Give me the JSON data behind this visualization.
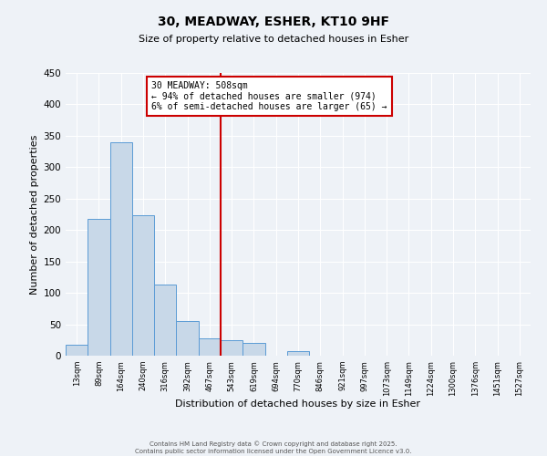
{
  "title": "30, MEADWAY, ESHER, KT10 9HF",
  "subtitle": "Size of property relative to detached houses in Esher",
  "xlabel": "Distribution of detached houses by size in Esher",
  "ylabel": "Number of detached properties",
  "bin_labels": [
    "13sqm",
    "89sqm",
    "164sqm",
    "240sqm",
    "316sqm",
    "392sqm",
    "467sqm",
    "543sqm",
    "619sqm",
    "694sqm",
    "770sqm",
    "846sqm",
    "921sqm",
    "997sqm",
    "1073sqm",
    "1149sqm",
    "1224sqm",
    "1300sqm",
    "1376sqm",
    "1451sqm",
    "1527sqm"
  ],
  "bar_values": [
    17,
    218,
    340,
    224,
    113,
    55,
    27,
    25,
    20,
    0,
    7,
    0,
    0,
    0,
    0,
    0,
    0,
    0,
    0,
    0,
    0
  ],
  "bar_color": "#c8d8e8",
  "bar_edge_color": "#5b9bd5",
  "ylim": [
    0,
    450
  ],
  "yticks": [
    0,
    50,
    100,
    150,
    200,
    250,
    300,
    350,
    400,
    450
  ],
  "property_line_x": 6.5,
  "property_label": "30 MEADWAY: 508sqm",
  "annotation_line1": "← 94% of detached houses are smaller (974)",
  "annotation_line2": "6% of semi-detached houses are larger (65) →",
  "red_line_color": "#cc0000",
  "background_color": "#eef2f7",
  "grid_color": "#ffffff",
  "footer_line1": "Contains HM Land Registry data © Crown copyright and database right 2025.",
  "footer_line2": "Contains public sector information licensed under the Open Government Licence v3.0."
}
